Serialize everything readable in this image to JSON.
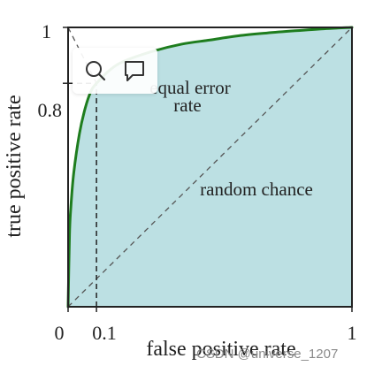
{
  "chart_data": {
    "type": "area",
    "xlabel": "false positive rate",
    "ylabel": "true positive rate",
    "xlim": [
      0,
      1
    ],
    "ylim": [
      0,
      1
    ],
    "x_ticks": [
      "0",
      "0.1",
      "1"
    ],
    "y_ticks": [
      "0.8",
      "1"
    ],
    "roc_curve": {
      "x": [
        0,
        0.005,
        0.01,
        0.02,
        0.04,
        0.06,
        0.08,
        0.1,
        0.15,
        0.2,
        0.3,
        0.4,
        0.5,
        0.6,
        0.7,
        0.8,
        0.9,
        1.0
      ],
      "y": [
        0,
        0.26,
        0.36,
        0.48,
        0.62,
        0.71,
        0.77,
        0.8,
        0.85,
        0.88,
        0.915,
        0.94,
        0.955,
        0.97,
        0.98,
        0.988,
        0.995,
        1.0
      ]
    },
    "random_chance_line": {
      "x": [
        0,
        1
      ],
      "y": [
        0,
        1
      ]
    },
    "equal_error_line": {
      "x": [
        0,
        1
      ],
      "y": [
        1,
        0
      ]
    },
    "equal_error_point": {
      "x": 0.1,
      "y": 0.8
    },
    "annotations": {
      "equal_error": [
        "equal error",
        "rate"
      ],
      "random_chance": "random chance"
    },
    "colors": {
      "curve": "#1e7d1e",
      "fill": "#bce0e3",
      "frame": "#222222",
      "dashed": "#555555",
      "marker": "#222222"
    },
    "grid": false
  },
  "watermark": "CSDN @universe_1207",
  "overlay_icons": [
    "search-icon",
    "comment-icon"
  ]
}
